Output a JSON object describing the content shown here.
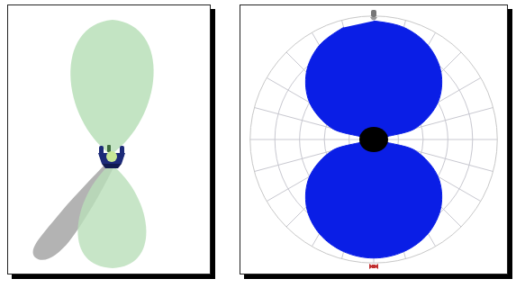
{
  "chart_data": {
    "type": "polar",
    "x": [
      0,
      15,
      30,
      45,
      60,
      75,
      90,
      105,
      120,
      135,
      150,
      165,
      180,
      195,
      210,
      225,
      240,
      255,
      270,
      285,
      300,
      315,
      330,
      345
    ],
    "values": [
      0.96,
      0.94,
      0.88,
      0.77,
      0.6,
      0.35,
      0.06,
      0.35,
      0.6,
      0.77,
      0.88,
      0.94,
      0.96,
      0.94,
      0.88,
      0.77,
      0.6,
      0.35,
      0.06,
      0.35,
      0.6,
      0.77,
      0.88,
      0.94
    ],
    "color": "#0a1ee6",
    "ylim": [
      0,
      1
    ],
    "yticks": [
      0.2,
      0.4,
      0.6,
      0.8,
      1
    ],
    "xticks": [
      0,
      15,
      30,
      45,
      60,
      75,
      90,
      105,
      120,
      135,
      150,
      165,
      180,
      195,
      210,
      225,
      240,
      255,
      270,
      285,
      300,
      315,
      330,
      345
    ],
    "grid": true,
    "tick_labels": false
  }
}
